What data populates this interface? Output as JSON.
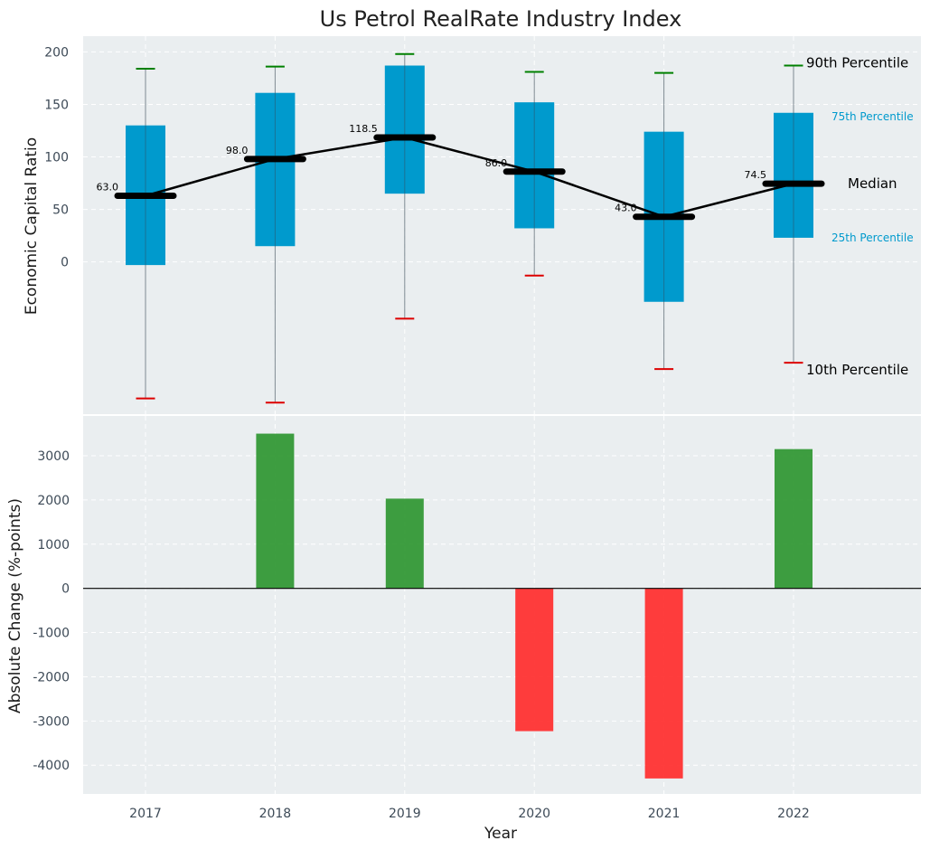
{
  "chart_data": [
    {
      "type": "box",
      "title": "Us Petrol RealRate Industry Index",
      "ylabel": "Economic Capital Ratio",
      "categories": [
        "2017",
        "2018",
        "2019",
        "2020",
        "2021",
        "2022"
      ],
      "yticks": [
        "0",
        "50",
        "100",
        "150",
        "200"
      ],
      "ylim": [
        -145,
        215
      ],
      "p10": [
        -130,
        -134,
        -54,
        -13,
        -102,
        -96
      ],
      "p25": [
        -3,
        15,
        65,
        32,
        -38,
        23
      ],
      "median": [
        63.0,
        98.0,
        118.5,
        86.0,
        43.0,
        74.5
      ],
      "median_labels": [
        "63.0",
        "98.0",
        "118.5",
        "86.0",
        "43.0",
        "74.5"
      ],
      "p75": [
        130,
        161,
        187,
        152,
        124,
        142
      ],
      "p90": [
        184,
        186,
        198,
        181,
        180,
        187
      ],
      "legend": {
        "p90": "90th Percentile",
        "p75": "75th Percentile",
        "median": "Median",
        "p25": "25th Percentile",
        "p10": "10th Percentile"
      }
    },
    {
      "type": "bar",
      "xlabel": "Year",
      "ylabel": "Absolute Change (%-points)",
      "categories": [
        "2017",
        "2018",
        "2019",
        "2020",
        "2021",
        "2022"
      ],
      "values": [
        0,
        3500,
        2030,
        -3230,
        -4300,
        3150
      ],
      "yticks": [
        "-4000",
        "-3000",
        "-2000",
        "-1000",
        "0",
        "1000",
        "2000",
        "3000"
      ],
      "ylim": [
        -4650,
        3900
      ]
    }
  ],
  "colors": {
    "box": "#009acd",
    "positive": "#2e9631",
    "negative": "#ff2d2d",
    "p90_cap": "#008000",
    "p10_cap": "#dd0000",
    "plot_bg": "#eaeef0",
    "median_line": "#000000"
  }
}
